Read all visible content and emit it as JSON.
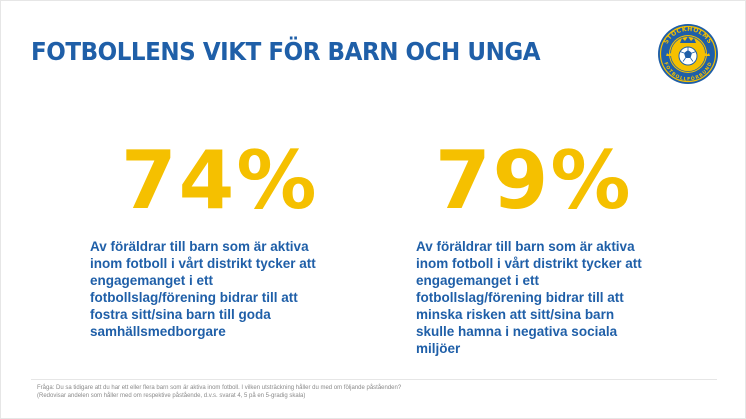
{
  "title": "FOTBOLLENS VIKT FÖR BARN OCH UNGA",
  "logo": {
    "icon": "stockholms-fotbollforbund-crest",
    "text_top": "STOCKHOLMS",
    "text_bottom": "FOTBOLLFÖRBUND",
    "colors": {
      "blue": "#1f5fa8",
      "yellow": "#f5c000"
    }
  },
  "stats": [
    {
      "value": "74%",
      "lines": [
        "Av föräldrar till barn som är aktiva",
        "inom fotboll i vårt distrikt tycker att",
        "engagemanget i ett",
        "fotbollslag/förening bidrar till att",
        "fostra sitt/sina barn till goda",
        "samhällsmedborgare"
      ]
    },
    {
      "value": "79%",
      "lines": [
        "Av föräldrar till barn som är aktiva",
        "inom fotboll i vårt distrikt tycker att",
        "engagemanget i ett",
        "fotbollslag/förening bidrar till att",
        "minska risken att sitt/sina barn",
        "skulle hamna i negativa sociala",
        "miljöer"
      ]
    }
  ],
  "footnote": {
    "line1": "Fråga: Du sa tidigare att du har ett eller flera barn som är aktiva inom fotboll. I vilken utsträckning håller du med om följande påståenden?",
    "line2": "(Redovisar andelen som håller med om respektive påstående, d.v.s. svarat 4, 5 på en 5-gradig skala)"
  },
  "colors": {
    "title": "#1f5fa8",
    "stat": "#f5c000",
    "text": "#1f5fa8",
    "footnote": "#8a8a8a"
  }
}
